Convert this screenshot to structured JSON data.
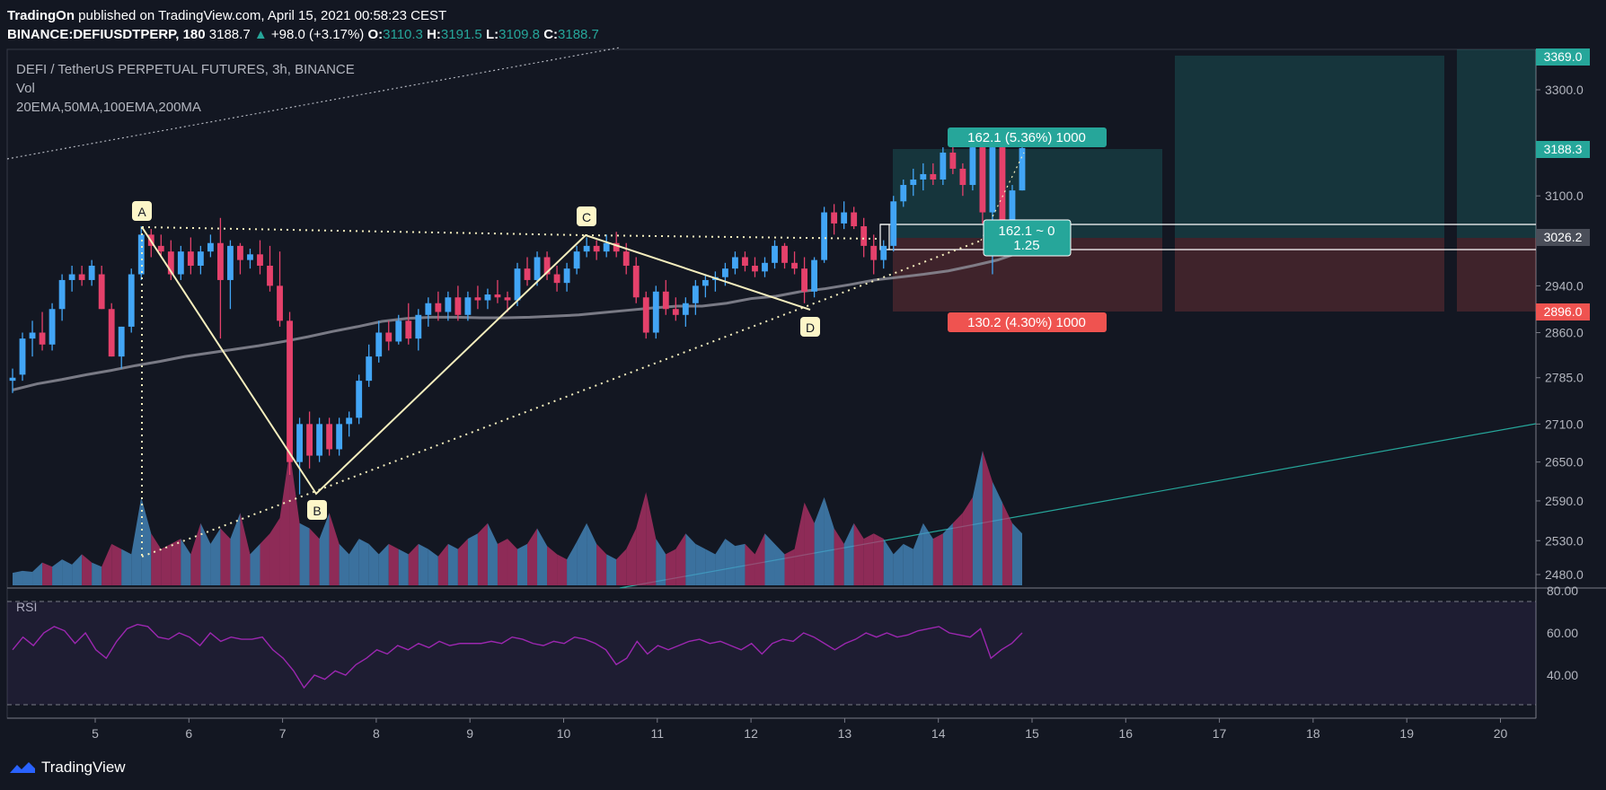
{
  "header": {
    "publisher": "TradingOn",
    "published_text": "published on TradingView.com, April 15, 2021 00:58:23 CEST",
    "symbol": "BINANCE:DEFIUSDTPERP, 180",
    "last": "3188.7",
    "change": "+98.0 (+3.17%)",
    "o_label": "O:",
    "o": "3110.3",
    "h_label": "H:",
    "h": "3191.5",
    "l_label": "L:",
    "l": "3109.8",
    "c_label": "C:",
    "c": "3188.7"
  },
  "legend": {
    "title": "DEFI / TetherUS PERPETUAL FUTURES, 3h, BINANCE",
    "vol": "Vol",
    "mas": "20EMA,50MA,100EMA,200MA",
    "rsi": "RSI"
  },
  "footer": {
    "brand": "TradingView"
  },
  "colors": {
    "background": "#131722",
    "up": "#42a5f5",
    "down": "#e5416b",
    "teal": "#26a69a",
    "red": "#ef5350",
    "pattern": "#f5eebd",
    "ma": "#8c8c96",
    "rsi_line": "#9c27b0"
  },
  "chart_data": [
    {
      "type": "candlestick",
      "title": "DEFI / TetherUS PERPETUAL FUTURES, 3h, BINANCE",
      "x_ticks": [
        "5",
        "6",
        "7",
        "8",
        "9",
        "10",
        "11",
        "12",
        "13",
        "14",
        "15",
        "16",
        "17",
        "18",
        "19",
        "20"
      ],
      "y_ticks": [
        "3300.0",
        "3100.0",
        "2940.0",
        "2860.0",
        "2785.0",
        "2710.0",
        "2650.0",
        "2590.0",
        "2530.0",
        "2480.0"
      ],
      "y_labels_extra": [
        "3369.0",
        "3188.3",
        "3026.2",
        "2896.0"
      ],
      "ylim": [
        2455,
        3420
      ],
      "scale": "log",
      "candles": [
        [
          2780,
          2800,
          2760,
          2785
        ],
        [
          2790,
          2860,
          2780,
          2850
        ],
        [
          2850,
          2880,
          2820,
          2860
        ],
        [
          2860,
          2895,
          2830,
          2840
        ],
        [
          2840,
          2910,
          2830,
          2900
        ],
        [
          2900,
          2960,
          2880,
          2950
        ],
        [
          2950,
          2975,
          2930,
          2960
        ],
        [
          2960,
          2975,
          2940,
          2950
        ],
        [
          2950,
          2985,
          2940,
          2975
        ],
        [
          2960,
          2975,
          2900,
          2900
        ],
        [
          2900,
          2910,
          2820,
          2820
        ],
        [
          2820,
          2870,
          2800,
          2870
        ],
        [
          2870,
          2970,
          2860,
          2960
        ],
        [
          2960,
          3045,
          2950,
          3030
        ],
        [
          3030,
          3040,
          2990,
          3010
        ],
        [
          3010,
          3030,
          2990,
          3000
        ],
        [
          3000,
          3020,
          2950,
          2960
        ],
        [
          2960,
          3010,
          2950,
          3000
        ],
        [
          3000,
          3025,
          2960,
          2975
        ],
        [
          2975,
          3010,
          2960,
          3000
        ],
        [
          3000,
          3030,
          2990,
          3015
        ],
        [
          3015,
          3060,
          2850,
          2950
        ],
        [
          2950,
          3020,
          2900,
          3010
        ],
        [
          3010,
          3015,
          2960,
          2985
        ],
        [
          2985,
          3005,
          2970,
          2995
        ],
        [
          2995,
          3020,
          2960,
          2975
        ],
        [
          2975,
          3010,
          2930,
          2940
        ],
        [
          2940,
          3000,
          2870,
          2880
        ],
        [
          2880,
          2895,
          2630,
          2650
        ],
        [
          2650,
          2720,
          2600,
          2710
        ],
        [
          2710,
          2730,
          2640,
          2660
        ],
        [
          2660,
          2720,
          2650,
          2710
        ],
        [
          2710,
          2720,
          2660,
          2670
        ],
        [
          2670,
          2720,
          2660,
          2710
        ],
        [
          2710,
          2730,
          2690,
          2720
        ],
        [
          2720,
          2790,
          2710,
          2780
        ],
        [
          2780,
          2840,
          2770,
          2820
        ],
        [
          2820,
          2880,
          2810,
          2860
        ],
        [
          2860,
          2880,
          2830,
          2845
        ],
        [
          2845,
          2890,
          2840,
          2880
        ],
        [
          2880,
          2910,
          2840,
          2850
        ],
        [
          2850,
          2900,
          2830,
          2890
        ],
        [
          2890,
          2920,
          2870,
          2910
        ],
        [
          2910,
          2930,
          2880,
          2895
        ],
        [
          2895,
          2930,
          2880,
          2920
        ],
        [
          2920,
          2940,
          2880,
          2890
        ],
        [
          2890,
          2930,
          2880,
          2920
        ],
        [
          2920,
          2940,
          2900,
          2915
        ],
        [
          2915,
          2935,
          2900,
          2925
        ],
        [
          2925,
          2950,
          2910,
          2920
        ],
        [
          2920,
          2930,
          2895,
          2915
        ],
        [
          2915,
          2980,
          2905,
          2970
        ],
        [
          2970,
          2990,
          2940,
          2950
        ],
        [
          2950,
          3000,
          2940,
          2990
        ],
        [
          2990,
          3000,
          2950,
          2960
        ],
        [
          2960,
          2975,
          2930,
          2945
        ],
        [
          2945,
          2980,
          2930,
          2970
        ],
        [
          2970,
          3010,
          2960,
          3000
        ],
        [
          3000,
          3025,
          2990,
          3010
        ],
        [
          3010,
          3020,
          2985,
          3000
        ],
        [
          3000,
          3030,
          2990,
          3015
        ],
        [
          3015,
          3035,
          2990,
          3000
        ],
        [
          3000,
          3015,
          2960,
          2975
        ],
        [
          2975,
          2990,
          2910,
          2920
        ],
        [
          2920,
          2930,
          2850,
          2860
        ],
        [
          2860,
          2940,
          2850,
          2930
        ],
        [
          2930,
          2950,
          2890,
          2900
        ],
        [
          2900,
          2920,
          2880,
          2890
        ],
        [
          2890,
          2920,
          2870,
          2910
        ],
        [
          2910,
          2950,
          2890,
          2940
        ],
        [
          2940,
          2960,
          2920,
          2950
        ],
        [
          2950,
          2965,
          2930,
          2955
        ],
        [
          2955,
          2980,
          2940,
          2970
        ],
        [
          2970,
          3000,
          2960,
          2990
        ],
        [
          2990,
          3000,
          2965,
          2975
        ],
        [
          2975,
          2990,
          2955,
          2965
        ],
        [
          2965,
          2990,
          2955,
          2980
        ],
        [
          2980,
          3020,
          2970,
          3010
        ],
        [
          3010,
          3015,
          2970,
          2980
        ],
        [
          2980,
          3000,
          2960,
          2970
        ],
        [
          2970,
          2990,
          2910,
          2930
        ],
        [
          2930,
          2990,
          2920,
          2985
        ],
        [
          2985,
          3080,
          2980,
          3070
        ],
        [
          3070,
          3085,
          3030,
          3050
        ],
        [
          3050,
          3090,
          3040,
          3070
        ],
        [
          3070,
          3080,
          3040,
          3045
        ],
        [
          3045,
          3060,
          2990,
          3010
        ],
        [
          3010,
          3030,
          2960,
          2985
        ],
        [
          2985,
          3020,
          2970,
          3010
        ],
        [
          3010,
          3100,
          3000,
          3090
        ],
        [
          3090,
          3130,
          3080,
          3120
        ],
        [
          3120,
          3150,
          3100,
          3130
        ],
        [
          3130,
          3160,
          3110,
          3140
        ],
        [
          3140,
          3160,
          3120,
          3130
        ],
        [
          3130,
          3190,
          3120,
          3180
        ],
        [
          3180,
          3200,
          3140,
          3150
        ],
        [
          3150,
          3160,
          3100,
          3120
        ],
        [
          3120,
          3200,
          3110,
          3190
        ],
        [
          3190,
          3205,
          3050,
          3070
        ],
        [
          3070,
          3200,
          2960,
          3190
        ],
        [
          3190,
          3200,
          3000,
          3030
        ],
        [
          3030,
          3120,
          3010,
          3110
        ],
        [
          3110,
          3191.5,
          3109.8,
          3188.7
        ]
      ],
      "ma_line": [
        2765,
        2775,
        2782,
        2790,
        2797,
        2805,
        2812,
        2820,
        2826,
        2832,
        2838,
        2845,
        2853,
        2862,
        2870,
        2879,
        2884,
        2886,
        2886,
        2885,
        2885,
        2886,
        2888,
        2890,
        2894,
        2898,
        2902,
        2905,
        2905,
        2910,
        2918,
        2922,
        2930,
        2935,
        2942,
        2950,
        2955,
        2960,
        2966,
        2975,
        2985,
        3000
      ],
      "volume": [
        12,
        14,
        13,
        22,
        18,
        25,
        20,
        30,
        22,
        18,
        40,
        35,
        30,
        85,
        50,
        35,
        40,
        45,
        30,
        60,
        40,
        55,
        45,
        70,
        30,
        40,
        50,
        65,
        130,
        60,
        55,
        45,
        70,
        40,
        30,
        45,
        40,
        30,
        40,
        35,
        30,
        40,
        35,
        28,
        40,
        35,
        45,
        50,
        60,
        40,
        45,
        35,
        40,
        55,
        38,
        30,
        25,
        42,
        60,
        40,
        30,
        25,
        35,
        55,
        90,
        45,
        30,
        35,
        50,
        40,
        35,
        30,
        45,
        38,
        40,
        30,
        50,
        40,
        30,
        35,
        80,
        60,
        85,
        55,
        40,
        60,
        45,
        50,
        45,
        30,
        40,
        35,
        60,
        45,
        50,
        60,
        70,
        85,
        130,
        100,
        80,
        60,
        50
      ],
      "rsi": [
        52,
        58,
        54,
        60,
        63,
        61,
        55,
        60,
        52,
        48,
        56,
        62,
        64,
        63,
        58,
        57,
        60,
        58,
        54,
        60,
        56,
        58,
        57,
        57,
        58,
        52,
        48,
        42,
        34,
        40,
        38,
        42,
        40,
        45,
        48,
        52,
        50,
        54,
        52,
        55,
        53,
        56,
        54,
        55,
        55,
        55,
        56,
        55,
        58,
        57,
        55,
        54,
        56,
        55,
        58,
        57,
        55,
        52,
        45,
        48,
        56,
        50,
        54,
        52,
        54,
        56,
        57,
        55,
        56,
        54,
        52,
        55,
        50,
        55,
        57,
        56,
        60,
        58,
        55,
        52,
        55,
        57,
        60,
        58,
        60,
        58,
        59,
        61,
        62,
        63,
        60,
        59,
        58,
        62,
        48,
        52,
        55,
        60
      ],
      "rsi_ticks": [
        "80.00",
        "60.00",
        "40.00"
      ],
      "pattern_labels": [
        "A",
        "B",
        "C",
        "D"
      ],
      "position": {
        "target": "162.1 (5.36%) 1000",
        "stop": "130.2 (4.30%) 1000",
        "ratio_top": "162.1 ~ 0",
        "ratio_bottom": "1.25"
      }
    }
  ]
}
